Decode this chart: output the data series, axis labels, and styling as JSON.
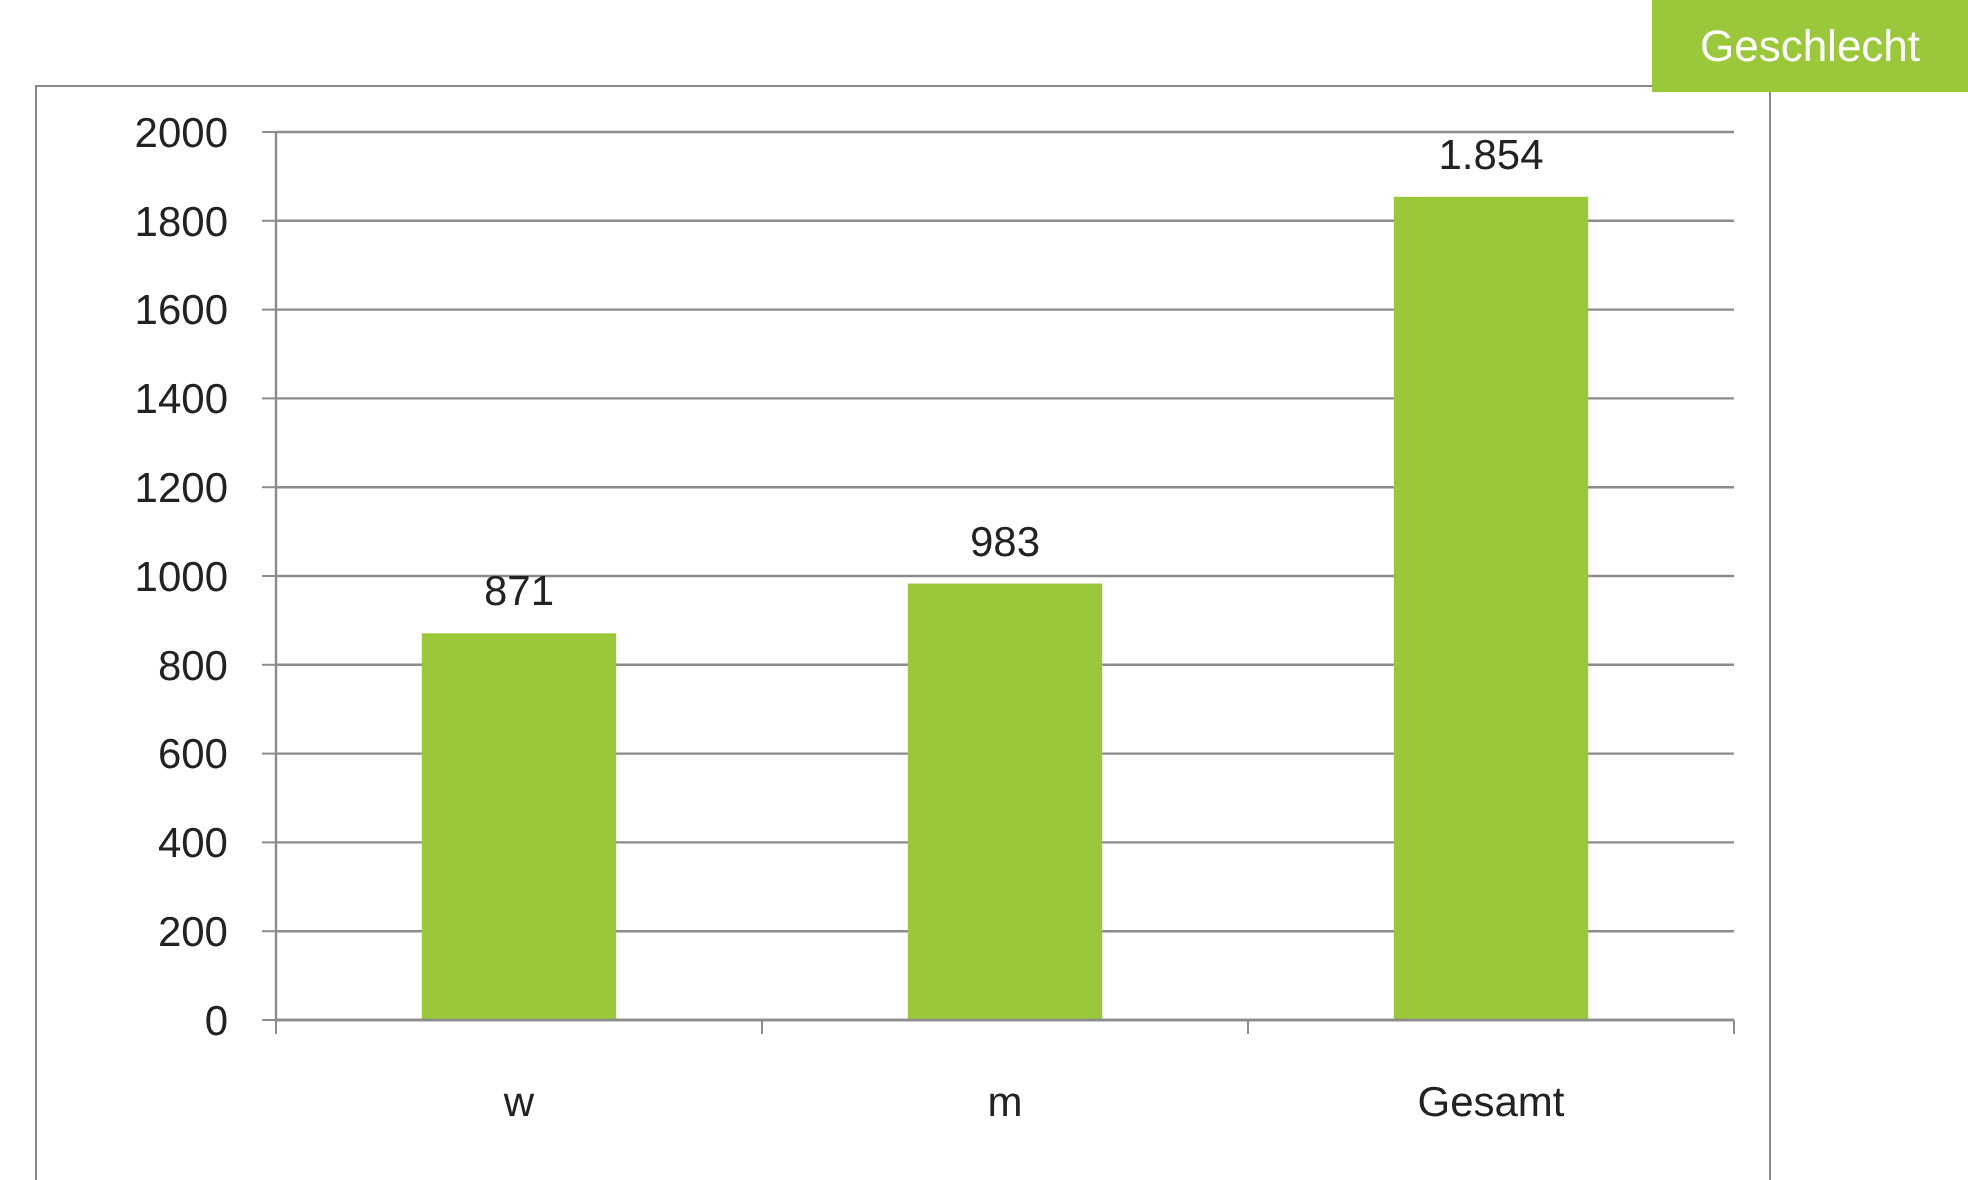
{
  "chart_data": {
    "type": "bar",
    "title": "Geschlecht",
    "categories": [
      "w",
      "m",
      "Gesamt"
    ],
    "values": [
      871,
      983,
      1854
    ],
    "color": "#9bc83a",
    "value_labels": [
      "871",
      "983",
      "1.854"
    ],
    "ylim": [
      0,
      2000
    ],
    "yticks": [
      0,
      200,
      400,
      600,
      800,
      1000,
      1200,
      1400,
      1600,
      1800,
      2000
    ],
    "grid": "y"
  }
}
